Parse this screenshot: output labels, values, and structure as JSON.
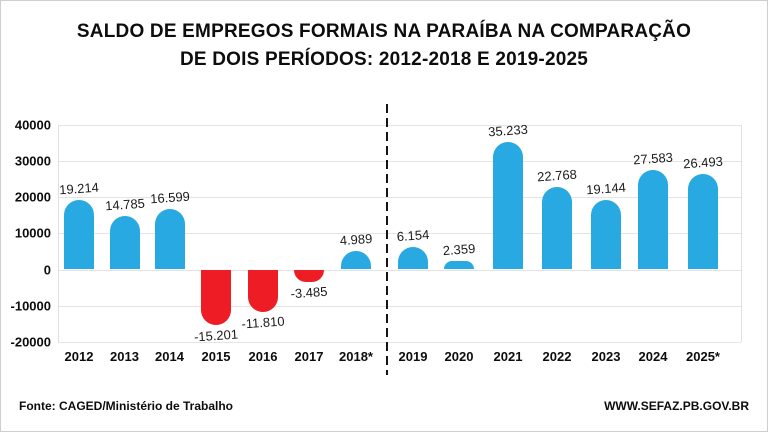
{
  "title": {
    "line1": "SALDO DE EMPREGOS FORMAIS NA PARAÍBA NA COMPARAÇÃO",
    "line2": "DE DOIS PERÍODOS: 2012-2018 E  2019-2025"
  },
  "footer": {
    "source": "Fonte: CAGED/Ministério de Trabalho",
    "website": "WWW.SEFAZ.PB.GOV.BR"
  },
  "chart_data": {
    "type": "bar",
    "title": "SALDO DE EMPREGOS FORMAIS NA PARAÍBA NA COMPARAÇÃO DE DOIS PERÍODOS: 2012-2018 E 2019-2025",
    "categories": [
      "2012",
      "2013",
      "2014",
      "2015",
      "2016",
      "2017",
      "2018*",
      "2019",
      "2020",
      "2021",
      "2022",
      "2023",
      "2024",
      "2025*"
    ],
    "values": [
      19214,
      14785,
      16599,
      -15201,
      -11810,
      -3485,
      4989,
      6154,
      2359,
      35233,
      22768,
      19144,
      27583,
      26493
    ],
    "value_labels": [
      "19.214",
      "14.785",
      "16.599",
      "-15.201",
      "-11.810",
      "-3.485",
      "4.989",
      "6.154",
      "2.359",
      "35.233",
      "22.768",
      "19.144",
      "27.583",
      "26.493"
    ],
    "yticks": [
      40000,
      30000,
      20000,
      10000,
      0,
      -10000,
      -20000
    ],
    "ytick_labels": [
      "40000",
      "30000",
      "20000",
      "10000",
      "0",
      "-10000",
      "-20000"
    ],
    "ylim": [
      -20000,
      40000
    ],
    "grid": true,
    "legend": "none",
    "positive_color": "#29A9E1",
    "negative_color": "#EE1C25",
    "divider_after_index": 6,
    "periods": [
      "2012-2018",
      "2019-2025"
    ]
  }
}
